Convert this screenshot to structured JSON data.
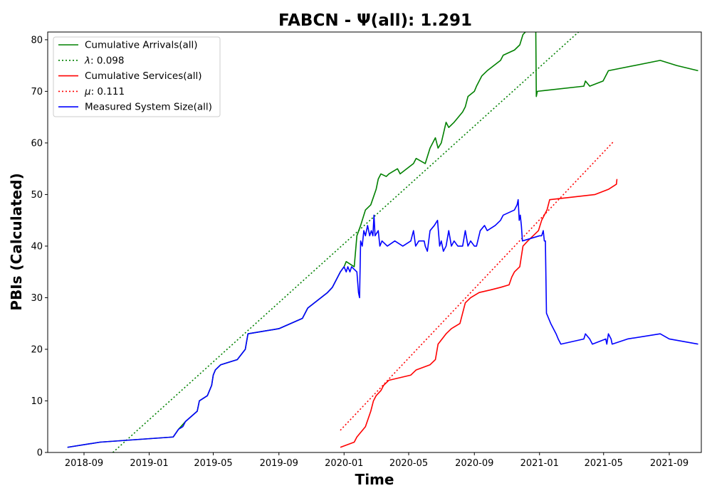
{
  "chart_data": {
    "type": "line",
    "title": "FABCN -  Ψ(all): 1.291",
    "xlabel": "Time",
    "ylabel": "PBIs (Calculated)",
    "xlim": [
      "2018-06-25",
      "2021-10-31"
    ],
    "ylim": [
      0,
      81.5
    ],
    "x_ticks": [
      "2018-09",
      "2019-01",
      "2019-05",
      "2019-09",
      "2020-01",
      "2020-05",
      "2020-09",
      "2021-01",
      "2021-05",
      "2021-09"
    ],
    "y_ticks": [
      0,
      10,
      20,
      30,
      40,
      50,
      60,
      70,
      80
    ],
    "grid": false,
    "legend_position": "top-left",
    "colors": {
      "arrivals": "#008000",
      "services": "#ff0000",
      "system": "#0000ff"
    },
    "series": [
      {
        "name": "Cumulative Arrivals(all)",
        "style": "solid",
        "color": "#008000",
        "points": [
          [
            "2018-08-01",
            1
          ],
          [
            "2018-10-01",
            2
          ],
          [
            "2019-02-15",
            3
          ],
          [
            "2019-02-25",
            4.5
          ],
          [
            "2019-03-10",
            6
          ],
          [
            "2019-04-01",
            8
          ],
          [
            "2019-04-05",
            10
          ],
          [
            "2019-04-20",
            11
          ],
          [
            "2019-04-28",
            13
          ],
          [
            "2019-05-01",
            15
          ],
          [
            "2019-05-05",
            16
          ],
          [
            "2019-05-15",
            17
          ],
          [
            "2019-06-15",
            18
          ],
          [
            "2019-06-30",
            20
          ],
          [
            "2019-07-05",
            23
          ],
          [
            "2019-09-01",
            24
          ],
          [
            "2019-10-15",
            26
          ],
          [
            "2019-10-25",
            28
          ],
          [
            "2019-12-01",
            31
          ],
          [
            "2019-12-10",
            32
          ],
          [
            "2019-12-25",
            35
          ],
          [
            "2020-01-01",
            36
          ],
          [
            "2020-01-05",
            37
          ],
          [
            "2020-01-20",
            36
          ],
          [
            "2020-01-25",
            42
          ],
          [
            "2020-02-01",
            44
          ],
          [
            "2020-02-10",
            47
          ],
          [
            "2020-02-20",
            48
          ],
          [
            "2020-03-01",
            51
          ],
          [
            "2020-03-05",
            53
          ],
          [
            "2020-03-10",
            54
          ],
          [
            "2020-03-20",
            53.5
          ],
          [
            "2020-03-25",
            54
          ],
          [
            "2020-04-10",
            55
          ],
          [
            "2020-04-15",
            54
          ],
          [
            "2020-05-10",
            56
          ],
          [
            "2020-05-15",
            57
          ],
          [
            "2020-06-01",
            56
          ],
          [
            "2020-06-10",
            59
          ],
          [
            "2020-06-20",
            61
          ],
          [
            "2020-06-25",
            59
          ],
          [
            "2020-07-01",
            60
          ],
          [
            "2020-07-10",
            64
          ],
          [
            "2020-07-15",
            63
          ],
          [
            "2020-07-25",
            64
          ],
          [
            "2020-08-10",
            66
          ],
          [
            "2020-08-15",
            67
          ],
          [
            "2020-08-20",
            69
          ],
          [
            "2020-09-01",
            70
          ],
          [
            "2020-09-05",
            71
          ],
          [
            "2020-09-15",
            73
          ],
          [
            "2020-09-25",
            74
          ],
          [
            "2020-10-20",
            76
          ],
          [
            "2020-10-25",
            77
          ],
          [
            "2020-11-15",
            78
          ],
          [
            "2020-11-25",
            79
          ],
          [
            "2020-12-01",
            81
          ],
          [
            "2020-12-10",
            82
          ],
          [
            "2020-12-20",
            82
          ],
          [
            "2020-12-25",
            82
          ],
          [
            "2020-12-26",
            69
          ],
          [
            "2020-12-28",
            70
          ],
          [
            "2021-03-25",
            71
          ],
          [
            "2021-03-28",
            72
          ],
          [
            "2021-04-05",
            71
          ],
          [
            "2021-04-30",
            72
          ],
          [
            "2021-05-10",
            74
          ],
          [
            "2021-08-15",
            76
          ],
          [
            "2021-09-15",
            75
          ],
          [
            "2021-10-25",
            74
          ]
        ]
      },
      {
        "name": "λ: 0.098",
        "name_prefix": "λ",
        "name_suffix": ": 0.098",
        "style": "dotted",
        "color": "#008000",
        "points": [
          [
            "2018-10-25",
            0
          ],
          [
            "2021-03-15",
            81.5
          ]
        ]
      },
      {
        "name": "Cumulative Services(all)",
        "style": "solid",
        "color": "#ff0000",
        "points": [
          [
            "2019-12-25",
            1
          ],
          [
            "2020-01-20",
            2
          ],
          [
            "2020-01-25",
            3
          ],
          [
            "2020-02-10",
            5
          ],
          [
            "2020-02-20",
            8
          ],
          [
            "2020-02-25",
            10
          ],
          [
            "2020-03-01",
            11
          ],
          [
            "2020-03-10",
            12
          ],
          [
            "2020-03-15",
            13
          ],
          [
            "2020-03-25",
            14
          ],
          [
            "2020-05-05",
            15
          ],
          [
            "2020-05-15",
            16
          ],
          [
            "2020-06-10",
            17
          ],
          [
            "2020-06-20",
            18
          ],
          [
            "2020-06-25",
            21
          ],
          [
            "2020-07-10",
            23
          ],
          [
            "2020-07-20",
            24
          ],
          [
            "2020-08-05",
            25
          ],
          [
            "2020-08-15",
            29
          ],
          [
            "2020-08-25",
            30
          ],
          [
            "2020-09-10",
            31
          ],
          [
            "2020-10-01",
            31.5
          ],
          [
            "2020-10-20",
            32
          ],
          [
            "2020-11-05",
            32.5
          ],
          [
            "2020-11-10",
            34
          ],
          [
            "2020-11-15",
            35
          ],
          [
            "2020-11-25",
            36
          ],
          [
            "2020-11-28",
            38
          ],
          [
            "2020-12-01",
            40
          ],
          [
            "2020-12-10",
            41
          ],
          [
            "2020-12-20",
            42
          ],
          [
            "2020-12-30",
            43
          ],
          [
            "2021-01-05",
            45
          ],
          [
            "2021-01-15",
            47
          ],
          [
            "2021-01-20",
            49
          ],
          [
            "2021-04-15",
            50
          ],
          [
            "2021-05-10",
            51
          ],
          [
            "2021-05-25",
            52
          ],
          [
            "2021-05-26",
            53
          ]
        ]
      },
      {
        "name": "μ: 0.111",
        "name_prefix": "μ",
        "name_suffix": ": 0.111",
        "style": "dotted",
        "color": "#ff0000",
        "points": [
          [
            "2019-12-25",
            4.3
          ],
          [
            "2021-05-20",
            60.3
          ]
        ]
      },
      {
        "name": "Measured System Size(all)",
        "style": "solid",
        "color": "#0000ff",
        "points": [
          [
            "2018-08-01",
            1
          ],
          [
            "2018-10-01",
            2
          ],
          [
            "2019-02-15",
            3
          ],
          [
            "2019-02-25",
            4.5
          ],
          [
            "2019-03-05",
            5
          ],
          [
            "2019-03-10",
            6
          ],
          [
            "2019-04-01",
            8
          ],
          [
            "2019-04-05",
            10
          ],
          [
            "2019-04-20",
            11
          ],
          [
            "2019-04-28",
            13
          ],
          [
            "2019-05-01",
            15
          ],
          [
            "2019-05-05",
            16
          ],
          [
            "2019-05-15",
            17
          ],
          [
            "2019-06-15",
            18
          ],
          [
            "2019-06-30",
            20
          ],
          [
            "2019-07-05",
            23
          ],
          [
            "2019-09-01",
            24
          ],
          [
            "2019-10-15",
            26
          ],
          [
            "2019-10-25",
            28
          ],
          [
            "2019-12-01",
            31
          ],
          [
            "2019-12-10",
            32
          ],
          [
            "2019-12-25",
            35
          ],
          [
            "2020-01-01",
            36
          ],
          [
            "2020-01-05",
            35
          ],
          [
            "2020-01-08",
            36
          ],
          [
            "2020-01-12",
            35
          ],
          [
            "2020-01-15",
            36
          ],
          [
            "2020-01-25",
            35
          ],
          [
            "2020-01-28",
            31
          ],
          [
            "2020-01-30",
            30
          ],
          [
            "2020-02-01",
            41
          ],
          [
            "2020-02-04",
            40
          ],
          [
            "2020-02-07",
            43
          ],
          [
            "2020-02-10",
            42
          ],
          [
            "2020-02-14",
            44
          ],
          [
            "2020-02-18",
            42
          ],
          [
            "2020-02-21",
            43
          ],
          [
            "2020-02-24",
            42
          ],
          [
            "2020-02-26",
            46
          ],
          [
            "2020-02-28",
            42
          ],
          [
            "2020-03-05",
            43
          ],
          [
            "2020-03-08",
            40
          ],
          [
            "2020-03-12",
            41
          ],
          [
            "2020-03-22",
            40
          ],
          [
            "2020-04-05",
            41
          ],
          [
            "2020-04-20",
            40
          ],
          [
            "2020-05-05",
            41
          ],
          [
            "2020-05-10",
            43
          ],
          [
            "2020-05-14",
            40
          ],
          [
            "2020-05-20",
            41
          ],
          [
            "2020-05-30",
            41
          ],
          [
            "2020-06-01",
            40
          ],
          [
            "2020-06-05",
            39
          ],
          [
            "2020-06-10",
            43
          ],
          [
            "2020-06-18",
            44
          ],
          [
            "2020-06-24",
            45
          ],
          [
            "2020-06-28",
            40
          ],
          [
            "2020-07-01",
            41
          ],
          [
            "2020-07-05",
            39
          ],
          [
            "2020-07-10",
            40
          ],
          [
            "2020-07-15",
            43
          ],
          [
            "2020-07-20",
            40
          ],
          [
            "2020-07-25",
            41
          ],
          [
            "2020-08-01",
            40
          ],
          [
            "2020-08-10",
            40
          ],
          [
            "2020-08-15",
            43
          ],
          [
            "2020-08-20",
            40
          ],
          [
            "2020-08-25",
            41
          ],
          [
            "2020-09-01",
            40
          ],
          [
            "2020-09-05",
            40
          ],
          [
            "2020-09-12",
            43
          ],
          [
            "2020-09-20",
            44
          ],
          [
            "2020-09-25",
            43
          ],
          [
            "2020-10-10",
            44
          ],
          [
            "2020-10-20",
            45
          ],
          [
            "2020-10-25",
            46
          ],
          [
            "2020-11-15",
            47
          ],
          [
            "2020-11-20",
            48
          ],
          [
            "2020-11-22",
            49
          ],
          [
            "2020-11-24",
            45
          ],
          [
            "2020-11-26",
            46
          ],
          [
            "2020-11-28",
            44
          ],
          [
            "2020-11-30",
            41
          ],
          [
            "2021-01-01",
            42
          ],
          [
            "2021-01-05",
            42
          ],
          [
            "2021-01-08",
            43
          ],
          [
            "2021-01-10",
            41
          ],
          [
            "2021-01-12",
            41
          ],
          [
            "2021-01-14",
            27
          ],
          [
            "2021-01-18",
            26
          ],
          [
            "2021-01-22",
            25
          ],
          [
            "2021-02-01",
            23
          ],
          [
            "2021-02-05",
            22
          ],
          [
            "2021-02-10",
            21
          ],
          [
            "2021-03-25",
            22
          ],
          [
            "2021-03-28",
            23
          ],
          [
            "2021-04-05",
            22
          ],
          [
            "2021-04-10",
            21
          ],
          [
            "2021-05-05",
            22
          ],
          [
            "2021-05-07",
            21
          ],
          [
            "2021-05-10",
            23
          ],
          [
            "2021-05-15",
            22
          ],
          [
            "2021-05-17",
            21
          ],
          [
            "2021-06-15",
            22
          ],
          [
            "2021-08-15",
            23
          ],
          [
            "2021-09-01",
            22
          ],
          [
            "2021-10-25",
            21
          ]
        ]
      }
    ]
  }
}
